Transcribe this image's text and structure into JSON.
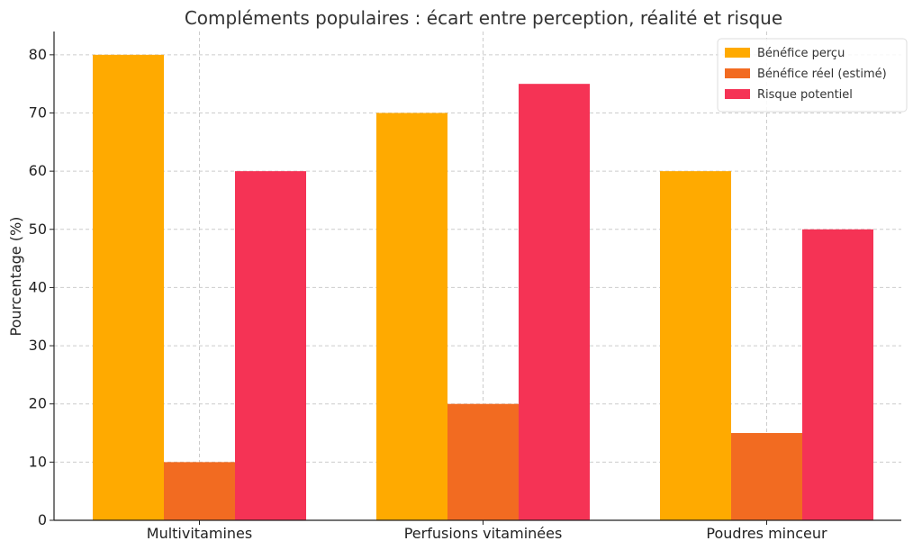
{
  "chart_data": {
    "type": "bar",
    "title": "Compléments populaires : écart entre perception, réalité et risque",
    "xlabel": "",
    "ylabel": "Pourcentage (%)",
    "categories": [
      "Multivitamines",
      "Perfusions vitaminées",
      "Poudres minceur"
    ],
    "series": [
      {
        "name": "Bénéfice perçu",
        "values": [
          80,
          70,
          60
        ],
        "color": "#FFAA00"
      },
      {
        "name": "Bénéfice réel (estimé)",
        "values": [
          10,
          20,
          15
        ],
        "color": "#F26B21"
      },
      {
        "name": "Risque potentiel",
        "values": [
          60,
          75,
          50
        ],
        "color": "#F53355"
      }
    ],
    "ylim": [
      0,
      84
    ],
    "yticks": [
      0,
      10,
      20,
      30,
      40,
      50,
      60,
      70,
      80
    ],
    "grid": true,
    "legend_position": "top-right"
  }
}
